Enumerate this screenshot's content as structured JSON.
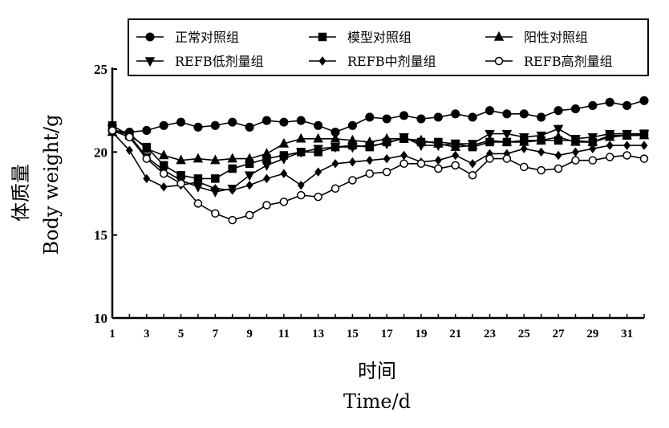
{
  "chart_data": {
    "type": "line",
    "xlabel_cn": "时间",
    "xlabel_en": "Time/d",
    "ylabel_cn": "体质量",
    "ylabel_en": "Body  weight/g",
    "xlim": [
      1,
      32
    ],
    "ylim": [
      10,
      25
    ],
    "x_ticks": [
      1,
      3,
      5,
      7,
      9,
      11,
      13,
      15,
      17,
      19,
      21,
      23,
      25,
      27,
      29,
      31
    ],
    "y_ticks": [
      10,
      15,
      20,
      25
    ],
    "x": [
      1,
      2,
      3,
      4,
      5,
      6,
      7,
      8,
      9,
      10,
      11,
      12,
      13,
      14,
      15,
      16,
      17,
      18,
      19,
      20,
      21,
      22,
      23,
      24,
      25,
      26,
      27,
      28,
      29,
      30,
      31,
      32
    ],
    "legend_position": "top",
    "series": [
      {
        "name": "正常对照组",
        "marker": "circle-filled",
        "values": [
          21.3,
          21.2,
          21.3,
          21.6,
          21.8,
          21.5,
          21.6,
          21.8,
          21.5,
          21.9,
          21.8,
          21.9,
          21.6,
          21.2,
          21.6,
          22.1,
          22.0,
          22.2,
          22.0,
          22.1,
          22.3,
          22.1,
          22.5,
          22.3,
          22.3,
          22.1,
          22.5,
          22.6,
          22.8,
          23.0,
          22.8,
          23.1
        ]
      },
      {
        "name": "模型对照组",
        "marker": "square-filled",
        "values": [
          21.6,
          21.0,
          20.3,
          19.2,
          18.6,
          18.4,
          18.4,
          19.0,
          19.3,
          19.6,
          19.8,
          20.0,
          20.0,
          20.3,
          20.4,
          20.3,
          20.6,
          20.8,
          20.6,
          20.6,
          20.5,
          20.3,
          20.6,
          20.6,
          20.7,
          20.7,
          20.7,
          20.7,
          20.6,
          21.0,
          21.0,
          21.1
        ]
      },
      {
        "name": "阳性对照组",
        "marker": "triangle-up",
        "values": [
          21.2,
          21.1,
          20.2,
          19.8,
          19.5,
          19.6,
          19.5,
          19.6,
          19.6,
          19.9,
          20.5,
          20.8,
          20.8,
          20.8,
          20.7,
          20.6,
          20.8,
          20.8,
          20.7,
          20.5,
          20.3,
          20.4,
          20.7,
          20.6,
          20.6,
          20.7,
          20.9,
          20.6,
          20.6,
          20.9,
          21.0,
          21.0
        ]
      },
      {
        "name": "REFB低剂量组",
        "marker": "triangle-down",
        "values": [
          21.4,
          21.0,
          19.7,
          18.9,
          18.3,
          17.9,
          17.6,
          17.8,
          18.6,
          19.2,
          19.6,
          20.0,
          20.2,
          20.3,
          20.3,
          20.4,
          20.5,
          20.9,
          20.4,
          20.4,
          20.5,
          20.5,
          21.1,
          21.1,
          20.9,
          21.0,
          21.4,
          20.8,
          20.9,
          21.1,
          21.1,
          21.1
        ]
      },
      {
        "name": "REFB中剂量组",
        "marker": "diamond-filled",
        "values": [
          21.2,
          20.1,
          18.4,
          17.9,
          18.0,
          18.2,
          17.8,
          17.7,
          18.0,
          18.4,
          18.7,
          18.0,
          18.8,
          19.3,
          19.4,
          19.5,
          19.6,
          19.8,
          19.4,
          19.5,
          19.8,
          19.3,
          19.9,
          19.9,
          20.2,
          20.0,
          19.8,
          20.0,
          20.2,
          20.4,
          20.4,
          20.4
        ]
      },
      {
        "name": "REFB高剂量组",
        "marker": "circle-open",
        "values": [
          21.3,
          20.9,
          19.6,
          18.7,
          18.1,
          16.9,
          16.3,
          15.9,
          16.2,
          16.8,
          17.0,
          17.4,
          17.3,
          17.8,
          18.3,
          18.7,
          18.8,
          19.3,
          19.3,
          19.0,
          19.2,
          18.6,
          19.6,
          19.6,
          19.1,
          18.9,
          19.0,
          19.5,
          19.5,
          19.7,
          19.8,
          19.6
        ]
      }
    ]
  }
}
